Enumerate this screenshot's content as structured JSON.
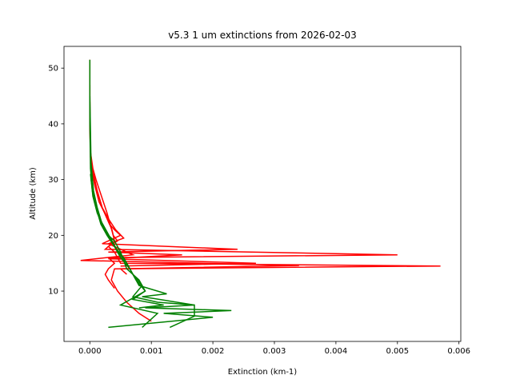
{
  "chart_data": {
    "type": "line",
    "title": "v5.3 1 um extinctions from 2026-02-03",
    "x_label": "Extinction (km-1)",
    "y_label": "Altitude (km)",
    "xlim": [
      -0.00042,
      0.00603
    ],
    "ylim": [
      0.97,
      53.9
    ],
    "xticks": [
      {
        "value": 0,
        "label": "0.000"
      },
      {
        "value": 0.001,
        "label": "0.001"
      },
      {
        "value": 0.002,
        "label": "0.002"
      },
      {
        "value": 0.003,
        "label": "0.003"
      },
      {
        "value": 0.004,
        "label": "0.004"
      },
      {
        "value": 0.005,
        "label": "0.005"
      },
      {
        "value": 0.006,
        "label": "0.006"
      }
    ],
    "yticks": [
      10,
      20,
      30,
      40,
      50
    ],
    "grid": false,
    "series": [
      {
        "color": "#ff0000",
        "x": [
          0,
          0,
          0,
          1e-05,
          5e-05,
          0.0001,
          0.00016,
          0.00022,
          0.00028,
          0.00033,
          0.00038,
          0.00045,
          0.0003,
          0.0004,
          0.00045,
          0.0005,
          0.0057,
          0.0004,
          0.00035,
          0.00045,
          0.0006,
          0.0008,
          0.001
        ],
        "y": [
          51.5,
          45,
          40,
          35,
          32,
          30,
          28,
          26,
          24,
          22,
          20,
          19,
          18,
          17,
          16,
          15,
          14.5,
          14,
          12,
          10,
          8,
          6,
          4.6
        ]
      },
      {
        "color": "#ff0000",
        "x": [
          0,
          0,
          1e-05,
          6e-05,
          0.00012,
          0.0002,
          0.00028,
          0.00036,
          0.0004,
          0.00025,
          0.005,
          0.0003,
          0.0004,
          0.0003,
          0.00025,
          0.0003,
          0.0004
        ],
        "y": [
          47,
          40,
          34,
          31,
          28,
          25,
          23,
          21,
          19,
          17.5,
          16.5,
          16,
          15,
          14,
          13,
          12,
          10.5
        ]
      },
      {
        "color": "#ff0000",
        "x": [
          0,
          1e-05,
          5e-05,
          0.00012,
          0.0002,
          0.0003,
          0.00042,
          0.00055,
          0.0003,
          0.0007,
          -0.00015,
          0.0034,
          0.0005,
          0.0006
        ],
        "y": [
          44,
          35,
          31,
          28,
          25,
          23,
          21,
          19.5,
          18.5,
          16.5,
          15.5,
          14.6,
          14,
          13
        ]
      },
      {
        "color": "#ff0000",
        "x": [
          1e-05,
          8e-05,
          0.00015,
          0.00024,
          0.00032,
          0.0004,
          0.0005,
          0.0002,
          0.0024,
          0.0003,
          0.0015,
          0.0003,
          0.0027,
          0.0005
        ],
        "y": [
          33,
          29,
          26,
          24,
          22,
          21,
          20,
          18.5,
          17.5,
          17,
          16.5,
          15.8,
          15,
          14.5
        ]
      },
      {
        "color": "#008000",
        "x": [
          0,
          0,
          1e-05,
          4e-05,
          0.0001,
          0.00018,
          0.00028,
          0.0004,
          0.0005,
          0.00065,
          0.0008,
          0.00125,
          0.00085,
          0.0017,
          0.0009,
          0.0023,
          0.0012,
          0.002,
          0.0003
        ],
        "y": [
          51.5,
          40,
          32,
          28,
          25,
          22,
          20,
          18,
          16,
          14,
          11,
          9.5,
          9,
          7.5,
          7,
          6.5,
          6,
          5.3,
          3.5
        ]
      },
      {
        "color": "#008000",
        "x": [
          0,
          2e-05,
          6e-05,
          0.00012,
          0.0002,
          0.0003,
          0.0004,
          0.00055,
          0.0007,
          0.00085,
          0.0007,
          0.0011,
          0.0017,
          0.0017,
          0.0013
        ],
        "y": [
          45,
          33,
          28,
          25,
          22,
          20,
          18,
          16,
          13,
          11,
          9,
          8,
          7.5,
          5.5,
          3.5
        ]
      },
      {
        "color": "#008000",
        "x": [
          1e-05,
          5e-05,
          0.00012,
          0.0002,
          0.0003,
          0.0004,
          0.0005,
          0.0006,
          0.0008,
          0.0009,
          0.0005,
          0.0011,
          0.00085
        ],
        "y": [
          31,
          27,
          24,
          22,
          20,
          19,
          17,
          14,
          12,
          10,
          7.5,
          6,
          3.5
        ]
      },
      {
        "color": "#008000",
        "x": [
          2e-05,
          8e-05,
          0.00016,
          0.00026,
          0.00036,
          0.00046,
          0.0006,
          0.00075,
          0.0009,
          0.0007,
          0.0012,
          0.0008
        ],
        "y": [
          30,
          26,
          23,
          21,
          19,
          17,
          15,
          12,
          10,
          8.5,
          7.5,
          7
        ]
      }
    ]
  }
}
